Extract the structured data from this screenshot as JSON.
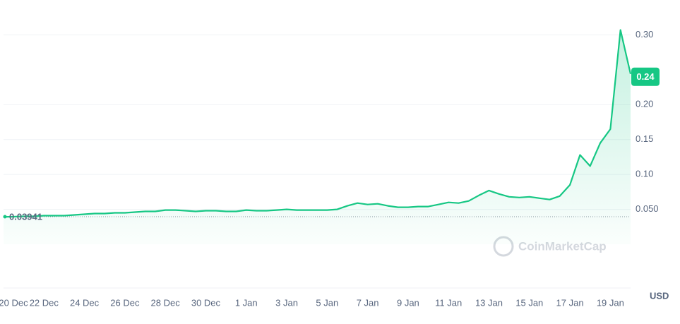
{
  "chart_data": {
    "type": "line",
    "categories": [
      "20 Dec",
      null,
      null,
      null,
      "22 Dec",
      null,
      null,
      null,
      "24 Dec",
      null,
      null,
      null,
      "26 Dec",
      null,
      null,
      null,
      "28 Dec",
      null,
      null,
      null,
      "30 Dec",
      null,
      null,
      null,
      "1 Jan",
      null,
      null,
      null,
      "3 Jan",
      null,
      null,
      null,
      "5 Jan",
      null,
      null,
      null,
      "7 Jan",
      null,
      null,
      null,
      "9 Jan",
      null,
      null,
      null,
      "11 Jan",
      null,
      null,
      null,
      "13 Jan",
      null,
      null,
      null,
      "15 Jan",
      null,
      null,
      null,
      "17 Jan",
      null,
      null,
      null,
      "19 Jan",
      null,
      null
    ],
    "series": [
      {
        "color": "#16c784",
        "values": [
          0.0394,
          0.0395,
          0.04,
          0.04,
          0.041,
          0.041,
          0.041,
          0.042,
          0.043,
          0.044,
          0.044,
          0.045,
          0.045,
          0.046,
          0.047,
          0.047,
          0.049,
          0.049,
          0.048,
          0.047,
          0.048,
          0.048,
          0.047,
          0.047,
          0.049,
          0.048,
          0.048,
          0.049,
          0.05,
          0.049,
          0.049,
          0.049,
          0.049,
          0.05,
          0.055,
          0.059,
          0.057,
          0.058,
          0.055,
          0.053,
          0.053,
          0.054,
          0.054,
          0.057,
          0.06,
          0.059,
          0.062,
          0.07,
          0.077,
          0.072,
          0.068,
          0.067,
          0.068,
          0.066,
          0.064,
          0.069,
          0.085,
          0.128,
          0.112,
          0.145,
          0.165,
          0.307,
          0.244
        ]
      }
    ],
    "ylim": [
      0,
      0.35
    ],
    "yticks": [
      {
        "value": 0.3,
        "label": "0.30"
      },
      {
        "value": 0.2,
        "label": "0.20"
      },
      {
        "value": 0.15,
        "label": "0.15"
      },
      {
        "value": 0.1,
        "label": "0.10"
      },
      {
        "value": 0.05,
        "label": "0.050"
      }
    ],
    "grid": true,
    "reference_value": 0.03941,
    "last_price": 0.24,
    "watermark": "CoinMarketCap",
    "currency": "USD"
  }
}
